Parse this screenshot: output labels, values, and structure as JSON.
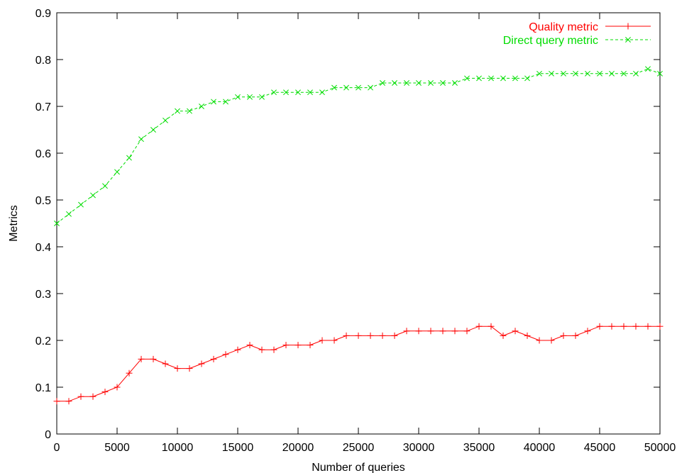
{
  "chart_data": {
    "type": "line",
    "title": "",
    "xlabel": "Number of queries",
    "ylabel": "Metrics",
    "xlim": [
      0,
      50000
    ],
    "ylim": [
      0,
      0.9
    ],
    "x_ticks": [
      "0",
      "5000",
      "10000",
      "15000",
      "20000",
      "25000",
      "30000",
      "35000",
      "40000",
      "45000",
      "50000"
    ],
    "y_ticks": [
      "0",
      "0.1",
      "0.2",
      "0.3",
      "0.4",
      "0.5",
      "0.6",
      "0.7",
      "0.8",
      "0.9"
    ],
    "grid": false,
    "legend_position": "top-right",
    "x": [
      0,
      1000,
      2000,
      3000,
      4000,
      5000,
      6000,
      7000,
      8000,
      9000,
      10000,
      11000,
      12000,
      13000,
      14000,
      15000,
      16000,
      17000,
      18000,
      19000,
      20000,
      21000,
      22000,
      23000,
      24000,
      25000,
      26000,
      27000,
      28000,
      29000,
      30000,
      31000,
      32000,
      33000,
      34000,
      35000,
      36000,
      37000,
      38000,
      39000,
      40000,
      41000,
      42000,
      43000,
      44000,
      45000,
      46000,
      47000,
      48000,
      49000,
      50000
    ],
    "series": [
      {
        "name": "Quality metric",
        "color": "#ff0000",
        "marker": "plus",
        "dash": "solid",
        "values": [
          0.07,
          0.07,
          0.08,
          0.08,
          0.09,
          0.1,
          0.13,
          0.16,
          0.16,
          0.15,
          0.14,
          0.14,
          0.15,
          0.16,
          0.17,
          0.18,
          0.19,
          0.18,
          0.18,
          0.19,
          0.19,
          0.19,
          0.2,
          0.2,
          0.21,
          0.21,
          0.21,
          0.21,
          0.21,
          0.22,
          0.22,
          0.22,
          0.22,
          0.22,
          0.22,
          0.23,
          0.23,
          0.21,
          0.22,
          0.21,
          0.2,
          0.2,
          0.21,
          0.21,
          0.22,
          0.23,
          0.23,
          0.23,
          0.23,
          0.23,
          0.23
        ]
      },
      {
        "name": "Direct query metric",
        "color": "#00dd00",
        "marker": "cross",
        "dash": "dashed",
        "values": [
          0.45,
          0.47,
          0.49,
          0.51,
          0.53,
          0.56,
          0.59,
          0.63,
          0.65,
          0.67,
          0.69,
          0.69,
          0.7,
          0.71,
          0.71,
          0.72,
          0.72,
          0.72,
          0.73,
          0.73,
          0.73,
          0.73,
          0.73,
          0.74,
          0.74,
          0.74,
          0.74,
          0.75,
          0.75,
          0.75,
          0.75,
          0.75,
          0.75,
          0.75,
          0.76,
          0.76,
          0.76,
          0.76,
          0.76,
          0.76,
          0.77,
          0.77,
          0.77,
          0.77,
          0.77,
          0.77,
          0.77,
          0.77,
          0.77,
          0.78,
          0.77
        ]
      }
    ]
  }
}
